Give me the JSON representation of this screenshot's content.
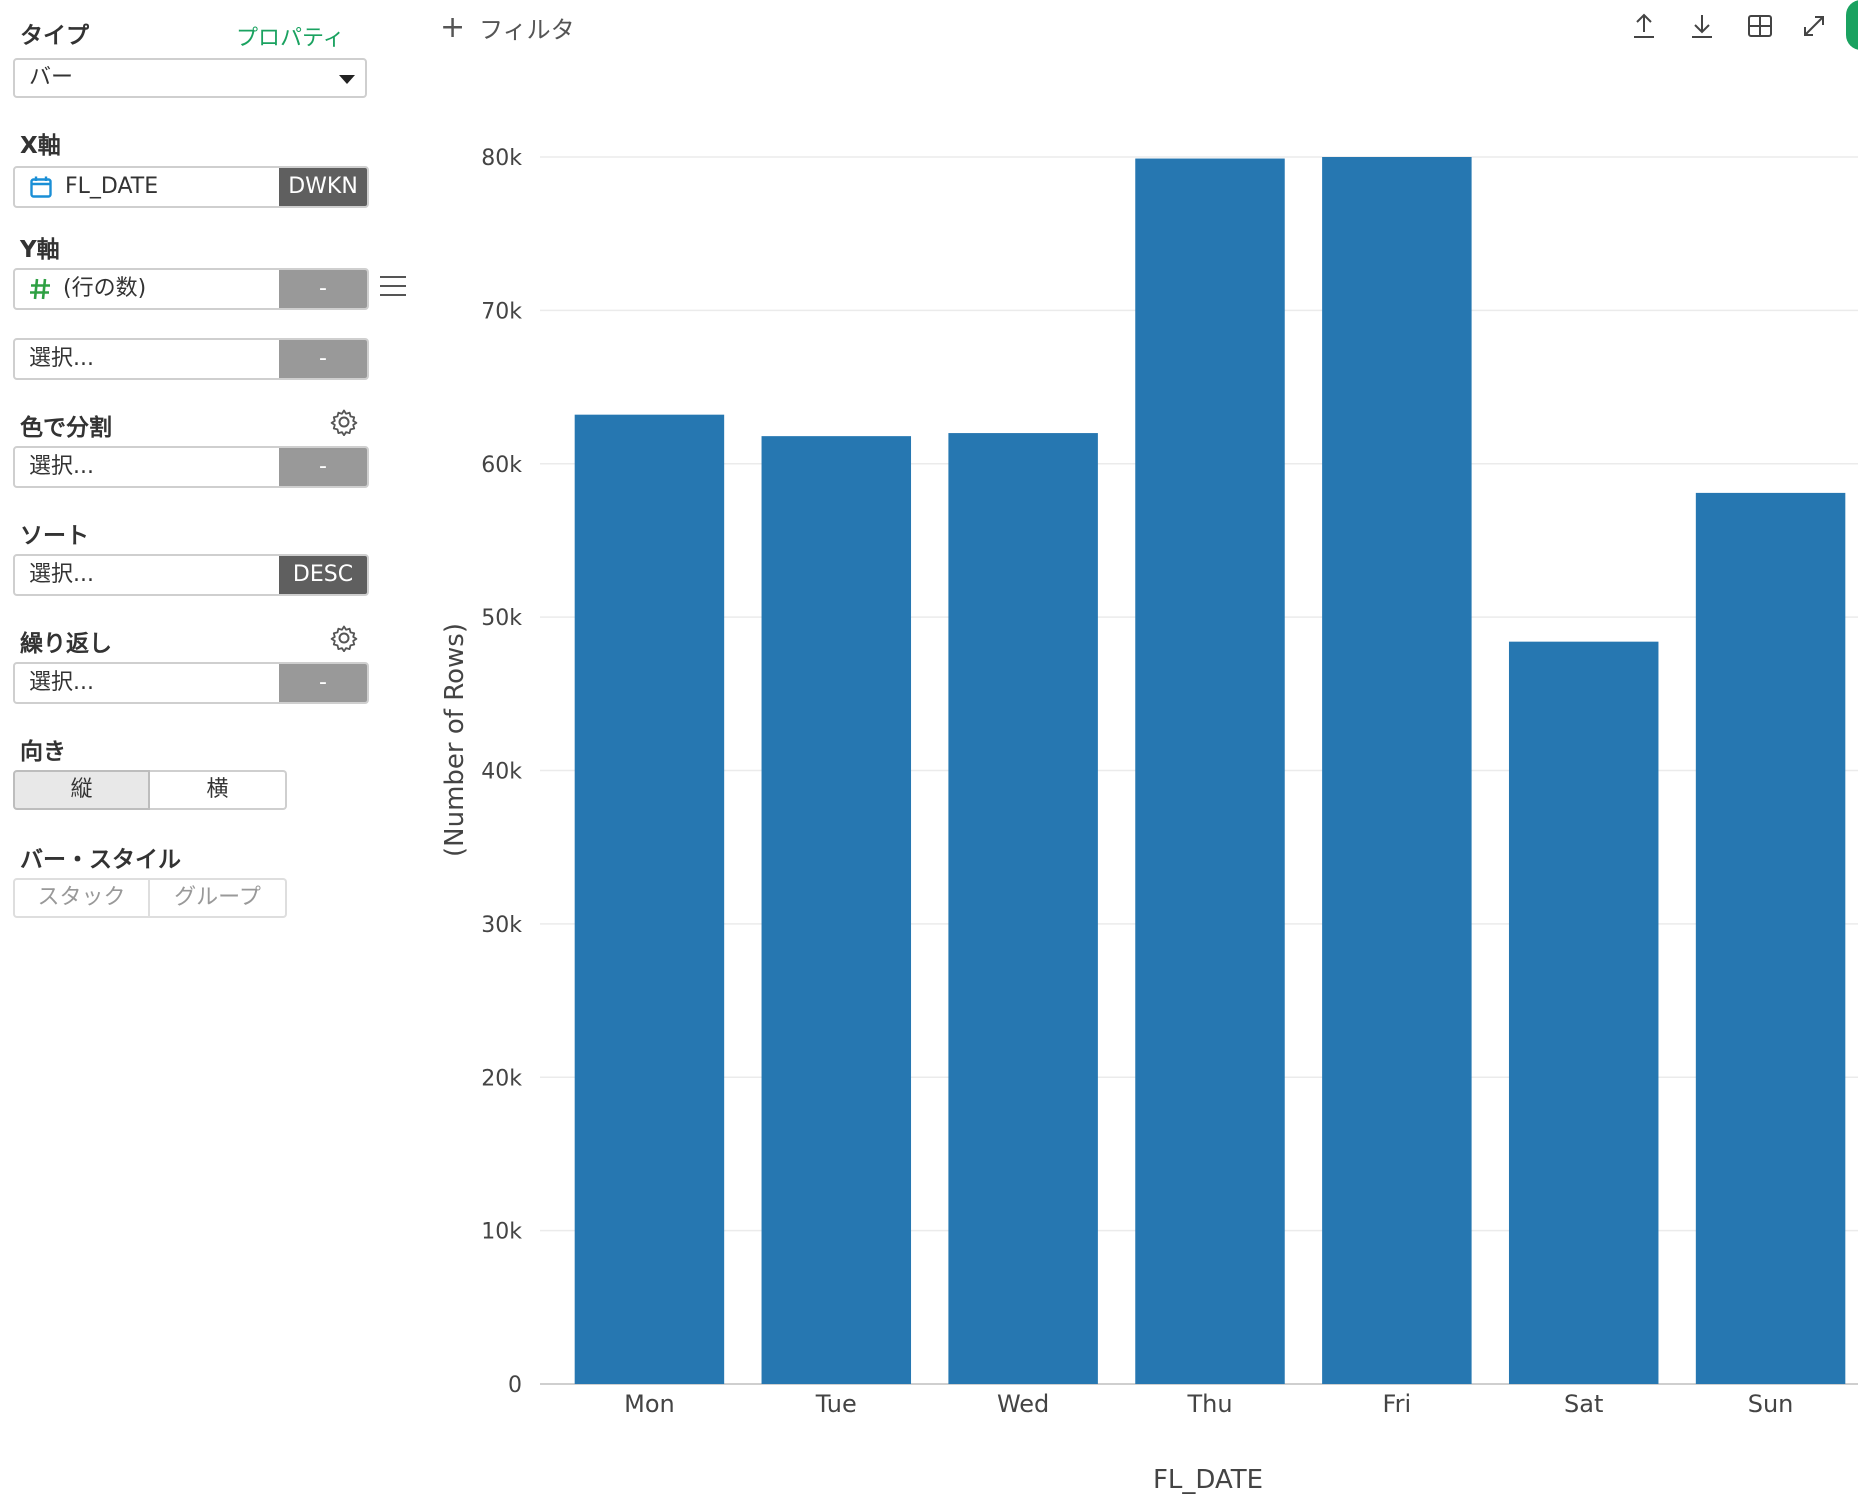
{
  "sidebar": {
    "type_label": "タイプ",
    "properties_link": "プロパティ",
    "type_value": "バー",
    "x_axis_label": "X軸",
    "x_field": {
      "name": "FL_DATE",
      "button": "DWKN",
      "icon": "calendar-icon"
    },
    "y_axis_label": "Y軸",
    "y_field": {
      "name": "(行の数)",
      "button": "-",
      "icon": "hash-icon"
    },
    "y_field2": {
      "name": "選択...",
      "button": "-"
    },
    "color_label": "色で分割",
    "color_field": {
      "name": "選択...",
      "button": "-"
    },
    "sort_label": "ソート",
    "sort_field": {
      "name": "選択...",
      "button": "DESC"
    },
    "repeat_label": "繰り返し",
    "repeat_field": {
      "name": "選択...",
      "button": "-"
    },
    "orientation_label": "向き",
    "orientation_options": [
      "縦",
      "横"
    ],
    "orientation_selected": "縦",
    "bar_style_label": "バー・スタイル",
    "bar_style_options": [
      "スタック",
      "グループ"
    ]
  },
  "toolbar": {
    "filter_label": "フィルタ",
    "icons": [
      "upload-icon",
      "download-icon",
      "table-icon",
      "expand-icon"
    ]
  },
  "colors": {
    "bar": "#2677b1",
    "accent": "#1aa260"
  },
  "chart_data": {
    "type": "bar",
    "categories": [
      "Mon",
      "Tue",
      "Wed",
      "Thu",
      "Fri",
      "Sat",
      "Sun"
    ],
    "values": [
      63200,
      61800,
      62000,
      79900,
      80000,
      48400,
      58100
    ],
    "xlabel": "FL_DATE",
    "ylabel": "(Number of Rows)",
    "ylim": [
      0,
      80000
    ],
    "yticks": [
      0,
      10000,
      20000,
      30000,
      40000,
      50000,
      60000,
      70000,
      80000
    ],
    "ytick_labels": [
      "0",
      "10k",
      "20k",
      "30k",
      "40k",
      "50k",
      "60k",
      "70k",
      "80k"
    ],
    "grid": true,
    "legend": "none"
  }
}
